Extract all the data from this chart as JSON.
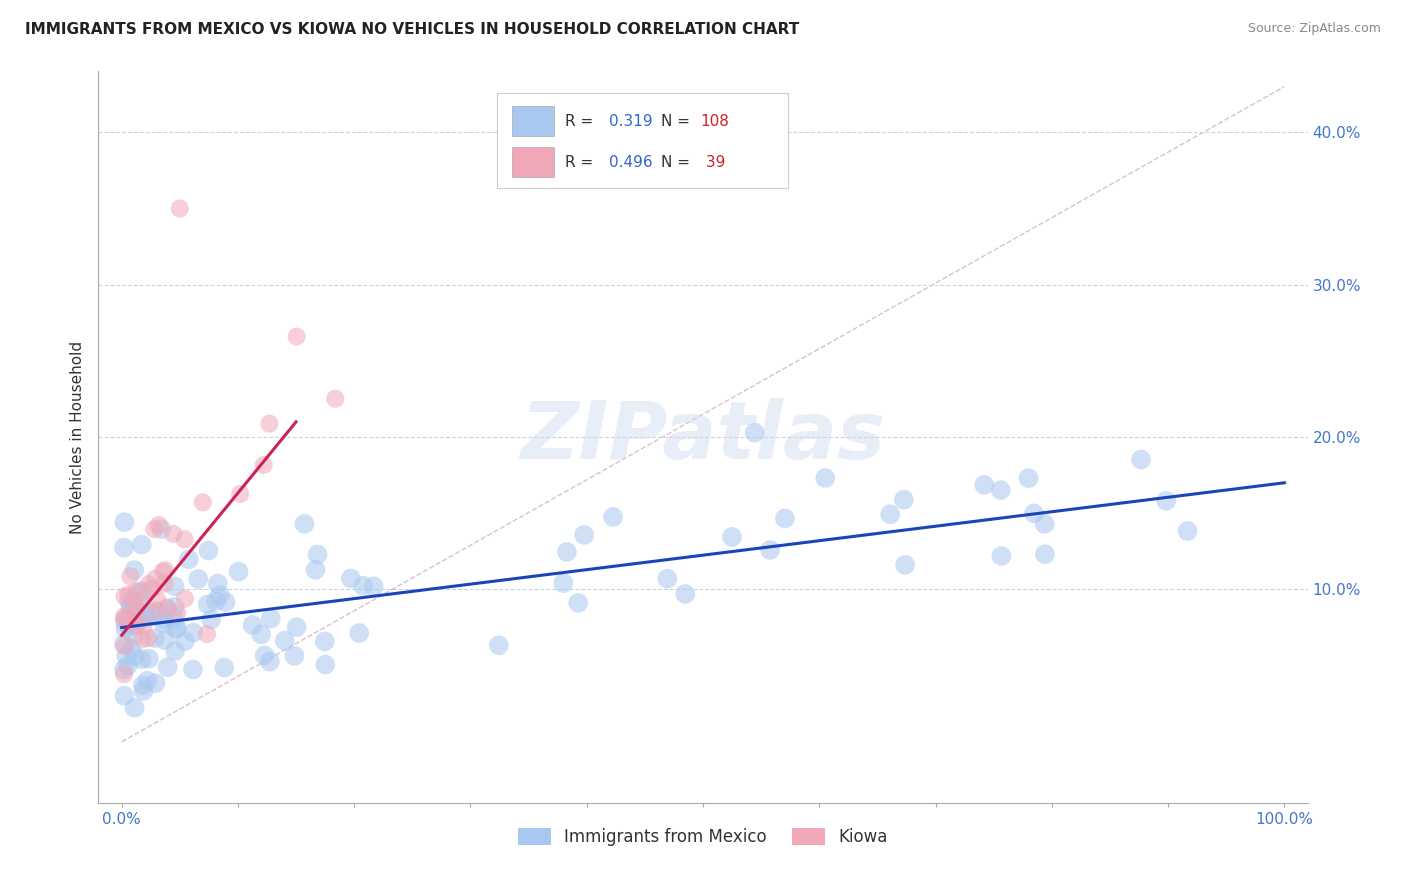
{
  "title": "IMMIGRANTS FROM MEXICO VS KIOWA NO VEHICLES IN HOUSEHOLD CORRELATION CHART",
  "source": "Source: ZipAtlas.com",
  "ylabel": "No Vehicles in Household",
  "legend_label_blue": "Immigrants from Mexico",
  "legend_label_pink": "Kiowa",
  "r_blue": "0.319",
  "n_blue": "108",
  "r_pink": "0.496",
  "n_pink": "39",
  "xtick_labels_show": [
    "0.0%",
    "100.0%"
  ],
  "xtick_positions_show": [
    0,
    100
  ],
  "ytick_labels": [
    "10.0%",
    "20.0%",
    "30.0%",
    "40.0%"
  ],
  "ytick_positions": [
    10,
    20,
    30,
    40
  ],
  "color_blue": "#a8c8f0",
  "color_pink": "#f0a8b8",
  "line_blue": "#1a44bb",
  "line_pink": "#cc2255",
  "diag_line_color": "#d8b8c8",
  "watermark": "ZIPatlas",
  "blue_line_x0": 0,
  "blue_line_x1": 100,
  "blue_line_y0": 7.5,
  "blue_line_y1": 17.0,
  "pink_line_x0": 0,
  "pink_line_x1": 15,
  "pink_line_y0": 7.0,
  "pink_line_y1": 21.0,
  "diag_line_x0": 0,
  "diag_line_x1": 100,
  "diag_line_y0": 0,
  "diag_line_y1": 43,
  "gridline_y": [
    10,
    20,
    30,
    40
  ],
  "xlim": [
    -2,
    102
  ],
  "ylim": [
    -4,
    44
  ],
  "dot_size_blue": 200,
  "dot_size_pink": 170,
  "dot_alpha": 0.55
}
